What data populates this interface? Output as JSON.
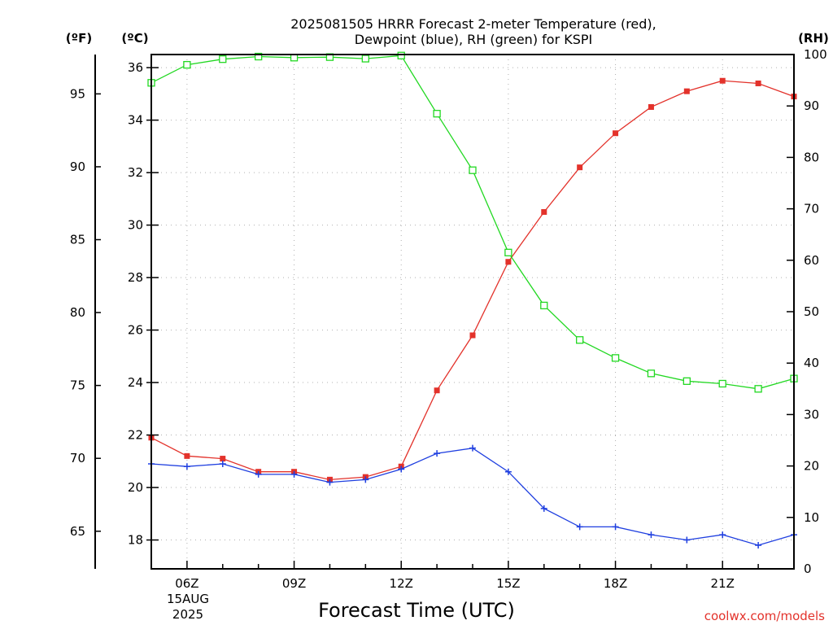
{
  "title_line1": "2025081505 HRRR Forecast 2-meter Temperature (red),",
  "title_line2": "Dewpoint (blue), RH (green) for KSPI",
  "unit_f": "(ºF)",
  "unit_c": "(ºC)",
  "unit_rh": "(RH)",
  "credit": "coolwx.com/models",
  "date_line1": "15AUG",
  "date_line2": "2025",
  "chart_data": {
    "type": "line",
    "title": "2025081505 HRRR Forecast 2-meter Temperature (red), Dewpoint (blue), RH (green) for KSPI",
    "xlabel": "Forecast Time (UTC)",
    "x": [
      5,
      6,
      7,
      8,
      9,
      10,
      11,
      12,
      13,
      14,
      15,
      16,
      17,
      18,
      19,
      20,
      21,
      22,
      23
    ],
    "x_range": [
      5,
      23
    ],
    "x_ticks": [
      {
        "x": 6,
        "label": "06Z"
      },
      {
        "x": 9,
        "label": "09Z"
      },
      {
        "x": 12,
        "label": "12Z"
      },
      {
        "x": 15,
        "label": "15Z"
      },
      {
        "x": 18,
        "label": "18Z"
      },
      {
        "x": 21,
        "label": "21Z"
      }
    ],
    "y_left_c": {
      "range": [
        16.9,
        36.5
      ],
      "ticks": [
        18,
        20,
        22,
        24,
        26,
        28,
        30,
        32,
        34,
        36
      ]
    },
    "y_left_f": {
      "ticks": [
        65,
        70,
        75,
        80,
        85,
        90,
        95
      ]
    },
    "y_right_rh": {
      "range": [
        0,
        100
      ],
      "ticks": [
        0,
        10,
        20,
        30,
        40,
        50,
        60,
        70,
        80,
        90,
        100
      ]
    },
    "grid": true,
    "series": [
      {
        "name": "Temperature",
        "axis": "celsius",
        "color": "#e3322b",
        "marker": "filled-square",
        "values": [
          21.9,
          21.2,
          21.1,
          20.6,
          20.6,
          20.3,
          20.4,
          20.8,
          23.7,
          25.8,
          28.6,
          30.5,
          32.2,
          33.5,
          34.5,
          35.1,
          35.5,
          35.4,
          34.9
        ]
      },
      {
        "name": "Dewpoint",
        "axis": "celsius",
        "color": "#1f3fe0",
        "marker": "plus",
        "values": [
          20.9,
          20.8,
          20.9,
          20.5,
          20.5,
          20.2,
          20.3,
          20.7,
          21.3,
          21.5,
          20.6,
          19.2,
          18.5,
          18.5,
          18.2,
          18.0,
          18.2,
          17.8,
          18.2
        ]
      },
      {
        "name": "RH",
        "axis": "rh",
        "color": "#22d822",
        "marker": "open-square",
        "values": [
          94.5,
          98.0,
          99.1,
          99.6,
          99.4,
          99.5,
          99.2,
          99.8,
          88.5,
          77.5,
          61.5,
          51.2,
          44.5,
          41.0,
          38.0,
          36.5,
          36.0,
          35.0,
          37.0
        ]
      }
    ]
  }
}
